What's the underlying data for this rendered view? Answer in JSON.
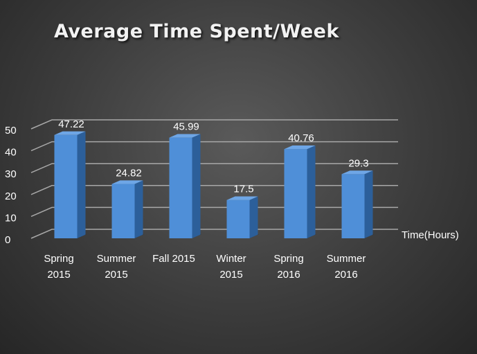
{
  "chart_data": {
    "type": "bar",
    "title": "Average Time Spent/Week",
    "categories": [
      [
        "Spring",
        "2015"
      ],
      [
        "Summer",
        "2015"
      ],
      [
        "Fall 2015"
      ],
      [
        "Winter",
        "2015"
      ],
      [
        "Spring",
        "2016"
      ],
      [
        "Summer",
        "2016"
      ]
    ],
    "series": [
      {
        "name": "Time(Hours)",
        "values": [
          47.22,
          24.82,
          45.99,
          17.5,
          40.76,
          29.3
        ]
      }
    ],
    "data_labels": [
      "47.22",
      "24.82",
      "45.99",
      "17.5",
      "40.76",
      "29.3"
    ],
    "y_ticks": [
      0,
      10,
      20,
      30,
      40,
      50
    ],
    "ylim": [
      0,
      50
    ],
    "grid": true,
    "legend_position": "right",
    "style": "3d-column",
    "colors": {
      "bar_front": "#4f8fd8",
      "bar_side": "#2c5f9a",
      "bar_top": "#6ea6e6",
      "grid": "#a8a8a8",
      "text": "#ffffff",
      "title": "#f2f2f2"
    }
  }
}
